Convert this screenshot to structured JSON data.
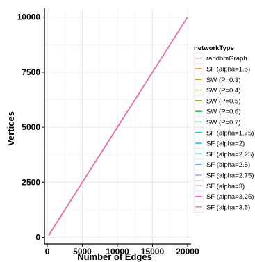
{
  "chart_data": {
    "type": "line",
    "title": "",
    "xlabel": "Number of Edges",
    "ylabel": "Vertices",
    "xlim": [
      -400,
      20500
    ],
    "ylim": [
      -300,
      10400
    ],
    "xticks": [
      0,
      5000,
      10000,
      15000,
      20000
    ],
    "yticks": [
      0,
      2500,
      5000,
      7500,
      10000
    ],
    "grid": true,
    "legend_title": "networkType",
    "legend_position": "right",
    "series": [
      {
        "name": "randomGraph",
        "color": "#F8766D",
        "x": [
          200,
          20000
        ],
        "y": [
          100,
          10000
        ]
      },
      {
        "name": "SF (alpha=1.5)",
        "color": "#E58700",
        "x": [
          200,
          20000
        ],
        "y": [
          100,
          10000
        ]
      },
      {
        "name": "SW (P=0.3)",
        "color": "#C99800",
        "x": [
          200,
          20000
        ],
        "y": [
          100,
          10000
        ]
      },
      {
        "name": "SW (P=0.4)",
        "color": "#A3A500",
        "x": [
          200,
          20000
        ],
        "y": [
          100,
          10000
        ]
      },
      {
        "name": "SW (P=0.5)",
        "color": "#6BB100",
        "x": [
          200,
          20000
        ],
        "y": [
          100,
          10000
        ]
      },
      {
        "name": "SW (P=0.6)",
        "color": "#00BA38",
        "x": [
          200,
          20000
        ],
        "y": [
          100,
          10000
        ]
      },
      {
        "name": "SW (P=0.7)",
        "color": "#00BF7D",
        "x": [
          200,
          20000
        ],
        "y": [
          100,
          10000
        ]
      },
      {
        "name": "SF (alpha=1.75)",
        "color": "#00C0AF",
        "x": [
          200,
          20000
        ],
        "y": [
          100,
          10000
        ]
      },
      {
        "name": "SF (alpha=2)",
        "color": "#00BCD8",
        "x": [
          200,
          20000
        ],
        "y": [
          100,
          10000
        ]
      },
      {
        "name": "SF (alpha=2.25)",
        "color": "#00B0F6",
        "x": [
          200,
          20000
        ],
        "y": [
          100,
          10000
        ]
      },
      {
        "name": "SF (alpha=2.5)",
        "color": "#619CFF",
        "x": [
          200,
          20000
        ],
        "y": [
          100,
          10000
        ]
      },
      {
        "name": "SF (alpha=2.75)",
        "color": "#B983FF",
        "x": [
          200,
          20000
        ],
        "y": [
          100,
          10000
        ]
      },
      {
        "name": "SF (alpha=3)",
        "color": "#E76BF3",
        "x": [
          200,
          20000
        ],
        "y": [
          100,
          10000
        ]
      },
      {
        "name": "SF (alpha=3.25)",
        "color": "#FD61D1",
        "x": [
          200,
          20000
        ],
        "y": [
          100,
          10000
        ]
      },
      {
        "name": "SF (alpha=3.5)",
        "color": "#FF67A4",
        "x": [
          200,
          20000
        ],
        "y": [
          100,
          10000
        ]
      }
    ]
  }
}
